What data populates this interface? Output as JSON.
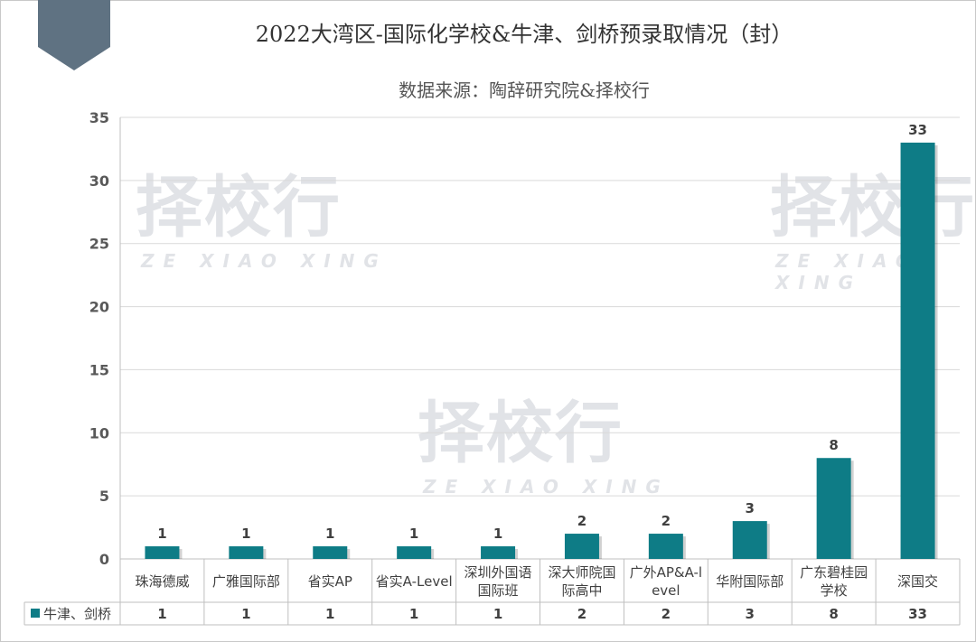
{
  "title": "2022大湾区-国际化学校&牛津、剑桥预录取情况（封）",
  "subtitle": "数据来源：陶辞研究院&择校行",
  "watermark": {
    "cn": "择校行",
    "en": "ZE XIAO XING"
  },
  "colors": {
    "bar": "#0e7c86",
    "banner": "#5f7282",
    "grid": "#d9d9d9",
    "axis": "#bfbfbf"
  },
  "chart_data": {
    "type": "bar",
    "categories": [
      [
        "珠海德威"
      ],
      [
        "广雅国际部"
      ],
      [
        "省实AP"
      ],
      [
        "省实A-Level"
      ],
      [
        "深圳外国语",
        "国际班"
      ],
      [
        "深大师院国",
        "际高中"
      ],
      [
        "广外AP&A-l",
        "evel"
      ],
      [
        "华附国际部"
      ],
      [
        "广东碧桂园",
        "学校"
      ],
      [
        "深国交"
      ]
    ],
    "series": [
      {
        "name": "牛津、剑桥",
        "values": [
          1,
          1,
          1,
          1,
          1,
          2,
          2,
          3,
          8,
          33
        ]
      }
    ],
    "ylim": [
      0,
      35
    ],
    "yticks": [
      0,
      5,
      10,
      15,
      20,
      25,
      30,
      35
    ],
    "grid": true,
    "legend": "data-table-left"
  }
}
